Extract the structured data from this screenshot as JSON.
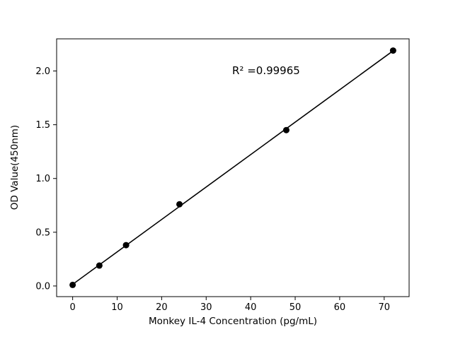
{
  "chart_data": {
    "type": "scatter",
    "title": "",
    "xlabel": "Monkey IL-4 Concentration (pg/mL)",
    "ylabel": "OD Value(450nm)",
    "annotation": "R² =0.99965",
    "r_squared": 0.99965,
    "x": [
      0,
      6,
      12,
      24,
      48,
      72
    ],
    "y": [
      0.01,
      0.19,
      0.38,
      0.76,
      1.45,
      2.19
    ],
    "series_name": "standard-curve",
    "fit": "linear-regression-through-points",
    "xlim": [
      -3.6,
      75.6
    ],
    "ylim": [
      -0.099,
      2.299
    ],
    "xticks": {
      "values": [
        0,
        10,
        20,
        30,
        40,
        50,
        60,
        70
      ],
      "labels": [
        "0",
        "10",
        "20",
        "30",
        "40",
        "50",
        "60",
        "70"
      ]
    },
    "yticks": {
      "values": [
        0,
        0.5,
        1.0,
        1.5,
        2.0
      ],
      "labels": [
        "0.0",
        "0.5",
        "1.0",
        "1.5",
        "2.0"
      ]
    },
    "grid": false,
    "legend": "none",
    "marker_color": "#000000",
    "line_color": "#000000",
    "frame_color": "#000000",
    "background": "#ffffff"
  }
}
